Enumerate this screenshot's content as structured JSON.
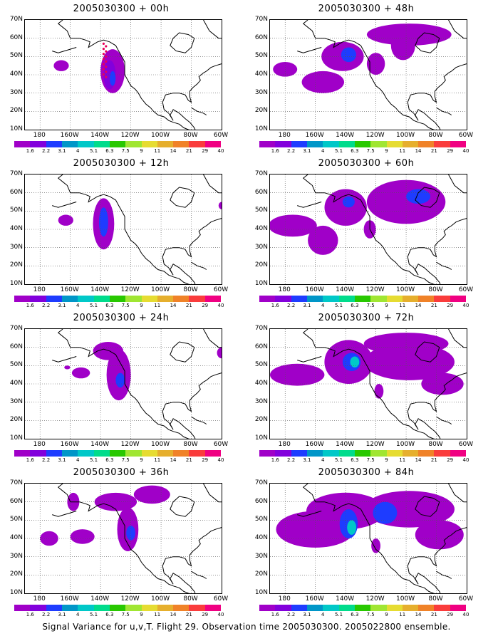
{
  "caption": "Signal Variance for u,v,T. Flight 29. Observation time 2005030300. 2005022800 ensemble.",
  "lat_labels": [
    "70N",
    "60N",
    "50N",
    "40N",
    "30N",
    "20N",
    "10N"
  ],
  "lon_labels": [
    "180",
    "160W",
    "140W",
    "120W",
    "100W",
    "80W",
    "60W"
  ],
  "colorbar": {
    "colors": [
      "#a000c8",
      "#8200dc",
      "#1e3cff",
      "#0096c8",
      "#00c8c8",
      "#00dc8c",
      "#28c800",
      "#a0e632",
      "#e6dc32",
      "#e6af2d",
      "#f08228",
      "#fa3c3c",
      "#f00082"
    ],
    "labels": [
      "1.6",
      "2.2",
      "3.1",
      "4",
      "5.1",
      "6.3",
      "7.5",
      "9",
      "11",
      "14",
      "21",
      "29",
      "40"
    ]
  },
  "colors": {
    "violet": "#a000c8",
    "purple": "#8200dc",
    "blue": "#1e3cff",
    "lightblue": "#0096c8",
    "cyan": "#00c8c8",
    "obs": "#e8005a"
  },
  "panels": [
    {
      "title": "2005030300 + 00h"
    },
    {
      "title": "2005030300 + 48h"
    },
    {
      "title": "2005030300 + 12h"
    },
    {
      "title": "2005030300 + 60h"
    },
    {
      "title": "2005030300 + 24h"
    },
    {
      "title": "2005030300 + 72h"
    },
    {
      "title": "2005030300 + 36h"
    },
    {
      "title": "2005030300 + 84h"
    }
  ]
}
